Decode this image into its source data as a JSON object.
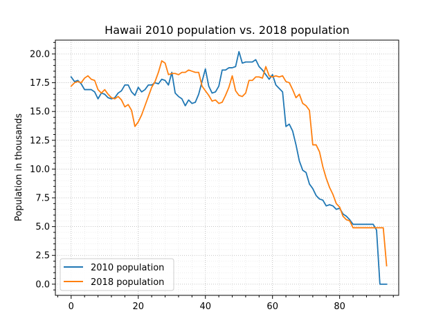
{
  "chart_data": {
    "type": "line",
    "title": "Hawaii 2010 population vs. 2018 population",
    "xlabel": "",
    "ylabel": "Population in thousands",
    "xlim": [
      -4.7,
      97.6
    ],
    "ylim": [
      -0.97,
      21.2
    ],
    "x_ticks": [
      0,
      20,
      40,
      60,
      80
    ],
    "x_tick_labels": [
      "0",
      "20",
      "40",
      "60",
      "80"
    ],
    "y_ticks": [
      0.0,
      2.5,
      5.0,
      7.5,
      10.0,
      12.5,
      15.0,
      17.5,
      20.0
    ],
    "y_tick_labels": [
      "0.0",
      "2.5",
      "5.0",
      "7.5",
      "10.0",
      "12.5",
      "15.0",
      "17.5",
      "20.0"
    ],
    "grid": "on (major and minor, dotted)",
    "legend_position": "lower-left",
    "series": [
      {
        "name": "2010 population",
        "color": "#1f77b4",
        "values": [
          18.0,
          17.6,
          17.7,
          17.4,
          16.9,
          16.9,
          16.9,
          16.7,
          16.1,
          16.6,
          16.5,
          16.2,
          16.1,
          16.2,
          16.6,
          16.8,
          17.3,
          17.3,
          16.7,
          16.4,
          17.1,
          16.7,
          16.9,
          17.3,
          17.3,
          17.5,
          17.4,
          17.8,
          17.7,
          17.3,
          18.4,
          16.6,
          16.3,
          16.1,
          15.5,
          16.0,
          15.7,
          15.8,
          16.5,
          17.6,
          18.7,
          17.2,
          16.6,
          16.7,
          17.2,
          18.6,
          18.6,
          18.8,
          18.8,
          18.9,
          20.2,
          19.2,
          19.3,
          19.3,
          19.3,
          19.5,
          18.9,
          18.6,
          18.2,
          17.8,
          18.2,
          17.3,
          17.0,
          16.7,
          13.7,
          13.9,
          13.3,
          12.1,
          10.7,
          9.9,
          9.7,
          8.7,
          8.3,
          7.7,
          7.4,
          7.3,
          6.8,
          6.9,
          6.8,
          6.5,
          6.6,
          6.1,
          5.9,
          5.6,
          5.2,
          5.2,
          5.2,
          5.2,
          5.2,
          5.2,
          5.2,
          4.7,
          0.0,
          0.0,
          0.0
        ]
      },
      {
        "name": "2018 population",
        "color": "#ff7f0e",
        "values": [
          17.2,
          17.5,
          17.6,
          17.5,
          17.9,
          18.1,
          17.8,
          17.7,
          16.9,
          16.6,
          16.9,
          16.5,
          16.2,
          16.1,
          16.3,
          16.0,
          15.4,
          15.6,
          15.1,
          13.7,
          14.1,
          14.7,
          15.5,
          16.3,
          17.1,
          17.6,
          18.4,
          19.4,
          19.2,
          18.2,
          18.3,
          18.3,
          18.2,
          18.4,
          18.4,
          18.6,
          18.5,
          18.4,
          18.4,
          17.2,
          16.8,
          16.4,
          15.9,
          16.0,
          15.7,
          15.8,
          16.4,
          17.1,
          18.1,
          16.8,
          16.4,
          16.3,
          16.6,
          17.7,
          17.7,
          18.0,
          18.0,
          17.9,
          18.9,
          18.1,
          18.0,
          18.1,
          18.0,
          18.1,
          17.6,
          17.5,
          16.9,
          16.2,
          16.5,
          15.7,
          15.5,
          15.1,
          12.1,
          12.1,
          11.5,
          10.2,
          9.2,
          8.4,
          7.8,
          7.0,
          6.7,
          5.9,
          5.6,
          5.5,
          4.9,
          4.9,
          4.9,
          4.9,
          4.9,
          4.9,
          4.9,
          4.9,
          4.9,
          4.9,
          1.6
        ]
      }
    ]
  }
}
